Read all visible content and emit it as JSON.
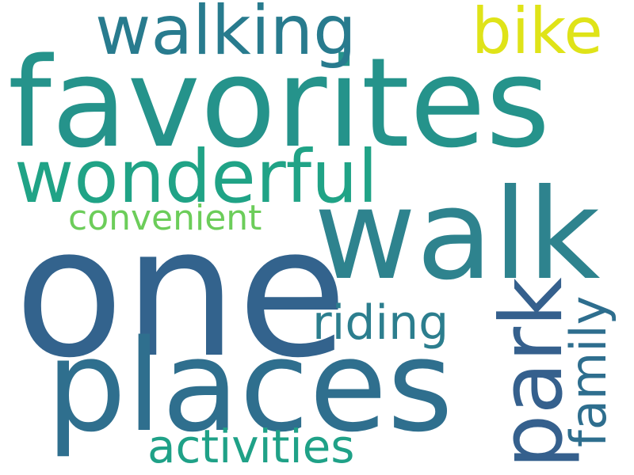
{
  "words": {
    "one": "one",
    "favorites": "favorites",
    "walk": "walk",
    "places": "places",
    "wonderful": "wonderful",
    "walking": "walking",
    "bike": "bike",
    "park": "park",
    "riding": "riding",
    "family": "family",
    "activities": "activities",
    "convenient": "convenient"
  },
  "colors": {
    "one": "#33638d",
    "favorites": "#25938b",
    "walk": "#2e838e",
    "places": "#2f6f8e",
    "wonderful": "#20a386",
    "walking": "#287b8e",
    "bike": "#dfe318",
    "park": "#35608d",
    "riding": "#2c7e8e",
    "family": "#2e6e8e",
    "activities": "#1fa187",
    "convenient": "#6ccd5a"
  }
}
